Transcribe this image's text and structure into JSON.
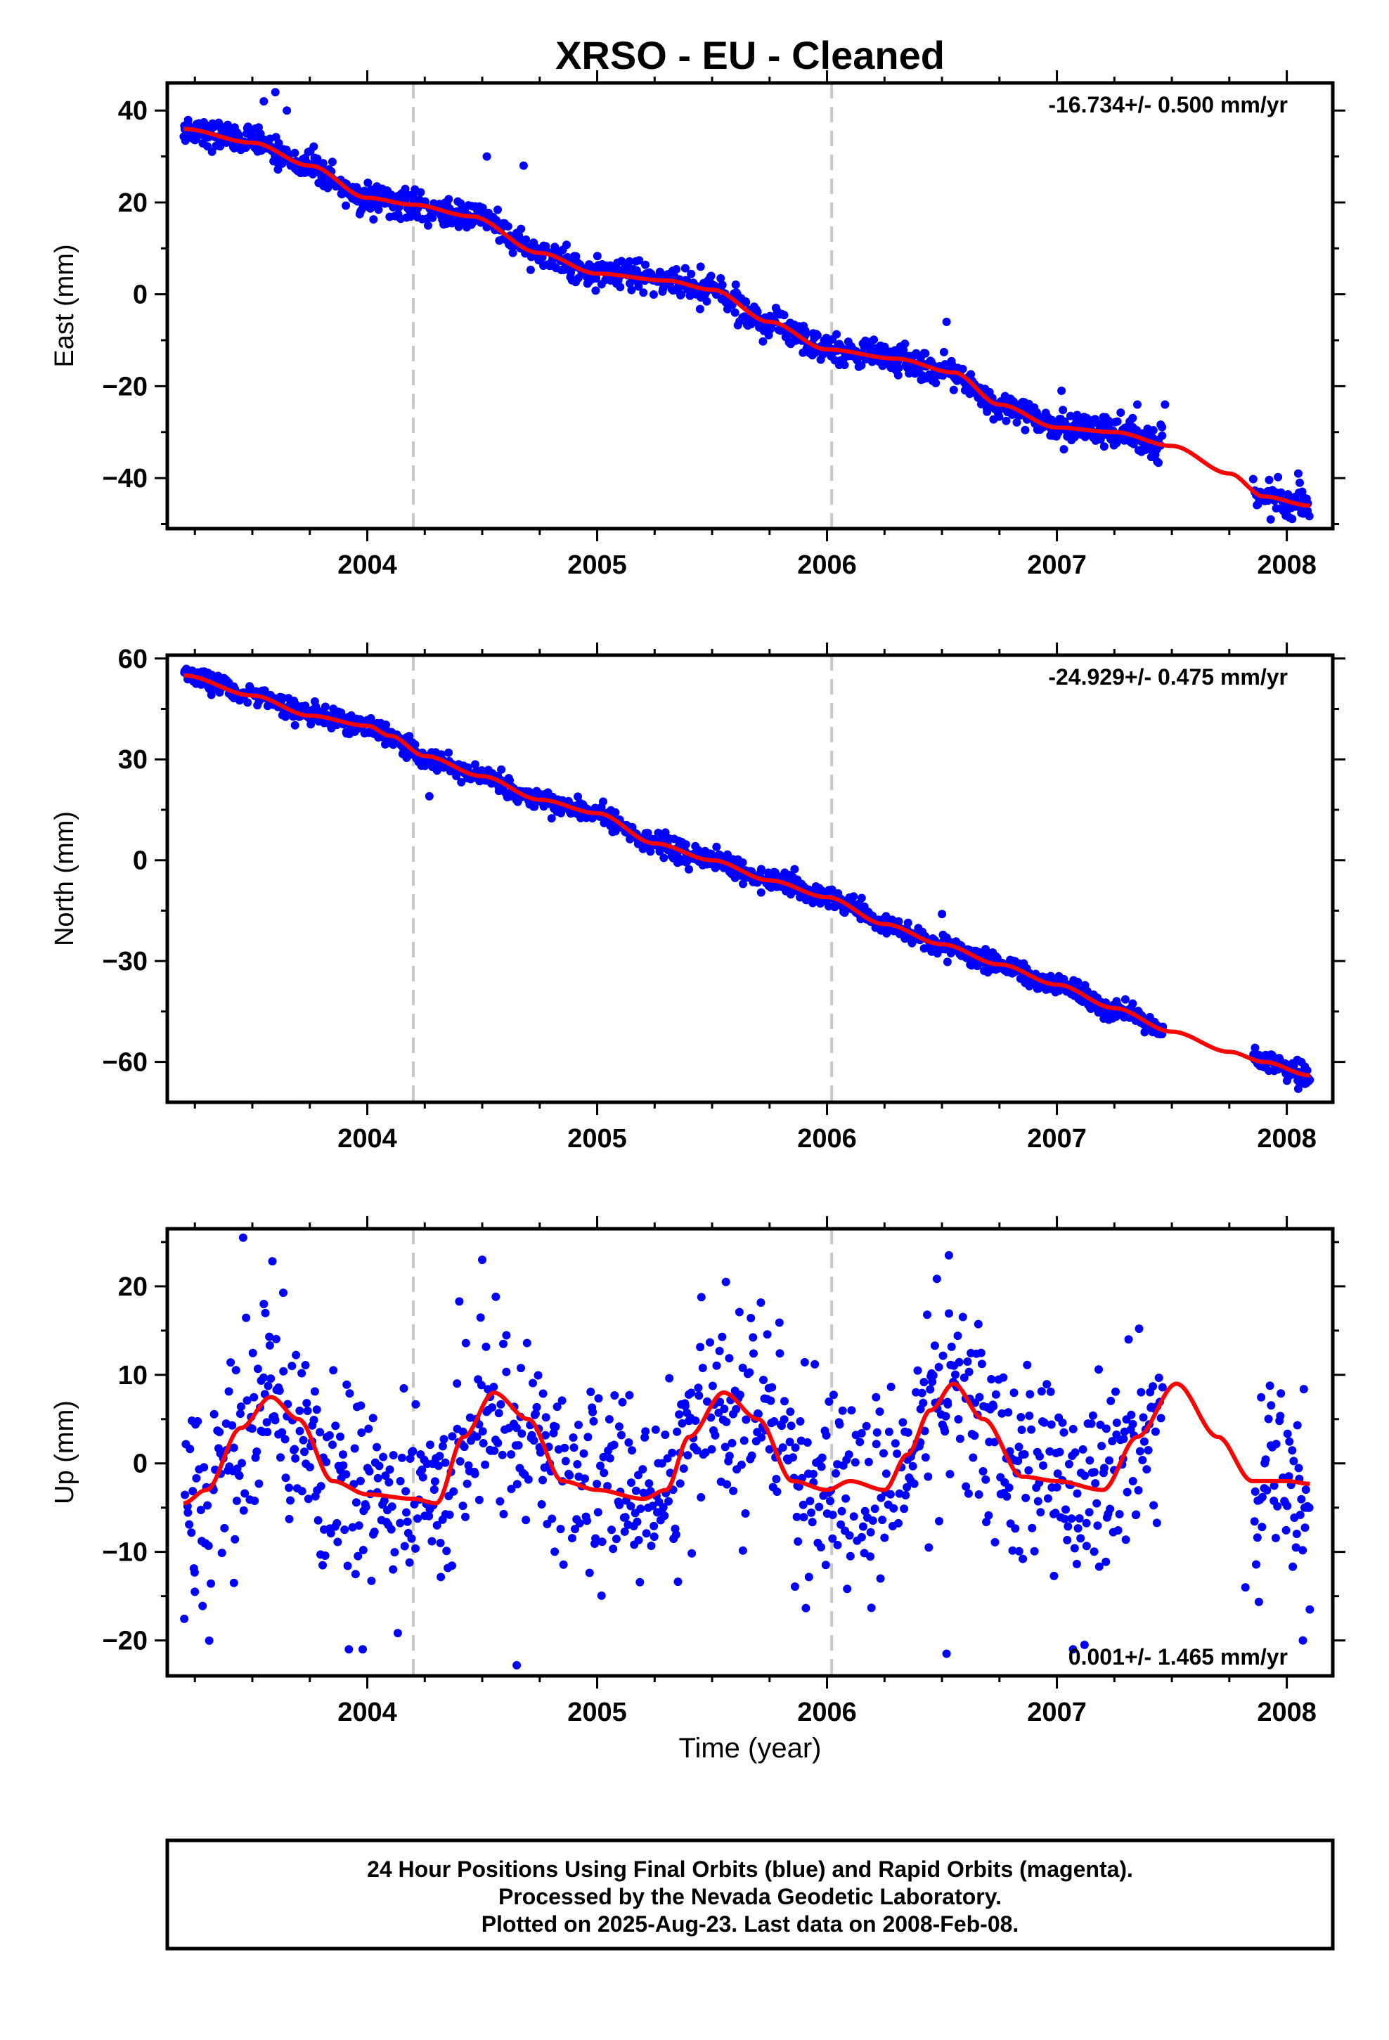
{
  "chart_data": {
    "title": "XRSO  - EU - Cleaned",
    "xlabel": "Time (year)",
    "x_ticks": [
      2004,
      2005,
      2006,
      2007,
      2008
    ],
    "xlim": [
      2003.13,
      2008.2
    ],
    "data_range": [
      2003.2,
      2008.1
    ],
    "gap": [
      2007.46,
      2007.85
    ],
    "offsets": [
      2004.2,
      2006.02
    ],
    "colors": {
      "points": "#0000ff",
      "fit": "#ff0000",
      "offset_line": "#c8c8c8",
      "frame": "#000000"
    },
    "panels": [
      {
        "type": "scatter",
        "name": "east",
        "ylabel": "East (mm)",
        "ylim": [
          -51,
          46
        ],
        "yticks": [
          40,
          20,
          0,
          -20,
          -40
        ],
        "ytick_labels": [
          "40",
          "20",
          "0",
          "−20",
          "−40"
        ],
        "rate": "-16.734+/- 0.500 mm/yr",
        "rate_position": "top-right",
        "noise": 1.6,
        "fit": [
          [
            2003.2,
            36
          ],
          [
            2003.5,
            33
          ],
          [
            2003.75,
            28
          ],
          [
            2004.0,
            21
          ],
          [
            2004.2,
            19.5
          ],
          [
            2004.45,
            17
          ],
          [
            2004.75,
            9
          ],
          [
            2005.0,
            4.5
          ],
          [
            2005.3,
            3
          ],
          [
            2005.5,
            1
          ],
          [
            2005.75,
            -6
          ],
          [
            2006.0,
            -12
          ],
          [
            2006.3,
            -14
          ],
          [
            2006.55,
            -17
          ],
          [
            2006.75,
            -24
          ],
          [
            2007.0,
            -29
          ],
          [
            2007.25,
            -30
          ],
          [
            2007.5,
            -33
          ],
          [
            2007.75,
            -39
          ],
          [
            2007.9,
            -44
          ],
          [
            2008.1,
            -46
          ]
        ],
        "outliers": [
          [
            2003.55,
            42
          ],
          [
            2003.6,
            44
          ],
          [
            2003.65,
            40
          ],
          [
            2004.52,
            30
          ],
          [
            2004.68,
            28
          ],
          [
            2005.45,
            6
          ],
          [
            2006.52,
            -6
          ],
          [
            2007.02,
            -21
          ],
          [
            2007.35,
            -24
          ],
          [
            2007.47,
            -24
          ],
          [
            2007.93,
            -49
          ],
          [
            2008.05,
            -39
          ]
        ]
      },
      {
        "type": "scatter",
        "name": "north",
        "ylabel": "North (mm)",
        "ylim": [
          -72,
          61
        ],
        "yticks": [
          60,
          30,
          0,
          -30,
          -60
        ],
        "ytick_labels": [
          "60",
          "30",
          "0",
          "−30",
          "−60"
        ],
        "rate": "-24.929+/- 0.475 mm/yr",
        "rate_position": "top-right",
        "noise": 1.5,
        "fit": [
          [
            2003.2,
            55
          ],
          [
            2003.5,
            49
          ],
          [
            2003.75,
            43
          ],
          [
            2004.0,
            40
          ],
          [
            2004.1,
            37
          ],
          [
            2004.25,
            31
          ],
          [
            2004.5,
            25
          ],
          [
            2004.75,
            18
          ],
          [
            2005.0,
            14
          ],
          [
            2005.25,
            5
          ],
          [
            2005.5,
            0
          ],
          [
            2005.75,
            -6
          ],
          [
            2006.0,
            -11
          ],
          [
            2006.25,
            -19
          ],
          [
            2006.5,
            -25
          ],
          [
            2006.75,
            -31
          ],
          [
            2007.0,
            -37
          ],
          [
            2007.25,
            -44
          ],
          [
            2007.5,
            -51
          ],
          [
            2007.75,
            -57
          ],
          [
            2007.9,
            -60
          ],
          [
            2008.1,
            -64
          ]
        ],
        "outliers": [
          [
            2004.27,
            19
          ],
          [
            2006.5,
            -16
          ],
          [
            2008.05,
            -68
          ],
          [
            2007.88,
            -58
          ]
        ]
      },
      {
        "type": "scatter",
        "name": "up",
        "ylabel": "Up (mm)",
        "ylim": [
          -24,
          26.5
        ],
        "yticks": [
          20,
          10,
          0,
          -10,
          -20
        ],
        "ytick_labels": [
          "20",
          "10",
          "0",
          "−10",
          "−20"
        ],
        "rate": "0.001+/- 1.465 mm/yr",
        "rate_position": "bottom-right",
        "noise": 5.5,
        "fit": [
          [
            2003.2,
            -4.5
          ],
          [
            2003.3,
            -3
          ],
          [
            2003.45,
            4
          ],
          [
            2003.58,
            7.5
          ],
          [
            2003.7,
            5
          ],
          [
            2003.85,
            -2
          ],
          [
            2004.0,
            -3.5
          ],
          [
            2004.2,
            -4
          ],
          [
            2004.3,
            -4.5
          ],
          [
            2004.42,
            3
          ],
          [
            2004.55,
            8
          ],
          [
            2004.7,
            5
          ],
          [
            2004.85,
            -2
          ],
          [
            2005.0,
            -3
          ],
          [
            2005.2,
            -4
          ],
          [
            2005.3,
            -3
          ],
          [
            2005.4,
            3
          ],
          [
            2005.55,
            8
          ],
          [
            2005.7,
            5
          ],
          [
            2005.85,
            -2
          ],
          [
            2006.0,
            -3
          ],
          [
            2006.1,
            -2
          ],
          [
            2006.25,
            -3
          ],
          [
            2006.35,
            1
          ],
          [
            2006.45,
            6
          ],
          [
            2006.55,
            9
          ],
          [
            2006.68,
            5
          ],
          [
            2006.85,
            -1.5
          ],
          [
            2007.0,
            -2
          ],
          [
            2007.2,
            -3
          ],
          [
            2007.35,
            3
          ],
          [
            2007.52,
            9
          ],
          [
            2007.7,
            3
          ],
          [
            2007.85,
            -2
          ],
          [
            2008.0,
            -2
          ],
          [
            2008.1,
            -2.3
          ]
        ],
        "outliers": [
          [
            2003.46,
            25.5
          ],
          [
            2004.5,
            23
          ],
          [
            2006.53,
            23.5
          ],
          [
            2005.56,
            20.5
          ],
          [
            2003.55,
            18
          ],
          [
            2004.65,
            -22.8
          ],
          [
            2003.92,
            -21
          ],
          [
            2003.98,
            -21
          ],
          [
            2006.52,
            -21.5
          ],
          [
            2007.07,
            -21
          ],
          [
            2007.12,
            -20.5
          ],
          [
            2008.07,
            -20
          ],
          [
            2003.25,
            -14.5
          ],
          [
            2003.42,
            -13.5
          ],
          [
            2008.1,
            -16.5
          ],
          [
            2007.82,
            -14
          ]
        ]
      }
    ]
  },
  "caption": {
    "line1": "24 Hour Positions Using Final Orbits (blue) and Rapid Orbits (magenta).",
    "line2": "Processed by the Nevada Geodetic Laboratory.",
    "line3": "Plotted on 2025-Aug-23. Last data on 2008-Feb-08."
  }
}
